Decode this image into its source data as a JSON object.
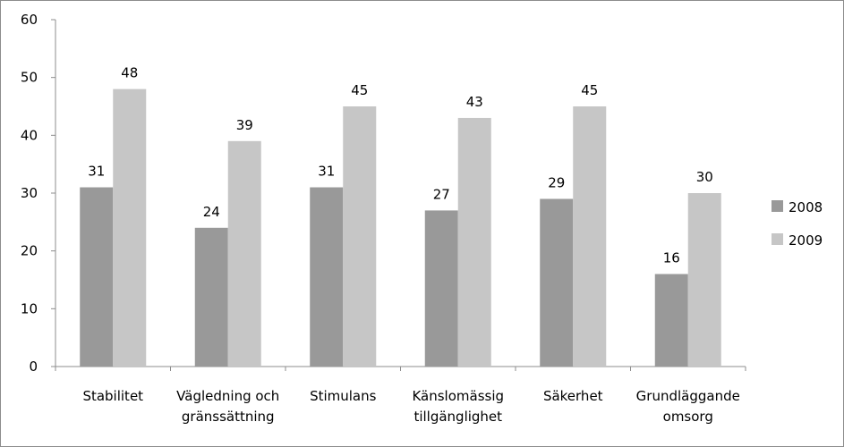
{
  "chart_data": {
    "type": "bar",
    "categories": [
      [
        "Stabilitet"
      ],
      [
        "Vägledning och",
        "gränssättning"
      ],
      [
        "Stimulans"
      ],
      [
        "Känslomässig",
        "tillgänglighet"
      ],
      [
        "Säkerhet"
      ],
      [
        "Grundläggande",
        "omsorg"
      ]
    ],
    "series": [
      {
        "name": "2008",
        "values": [
          31,
          24,
          31,
          27,
          29,
          16
        ],
        "color": "#999999"
      },
      {
        "name": "2009",
        "values": [
          48,
          39,
          45,
          43,
          45,
          30
        ],
        "color": "#c6c6c6"
      }
    ],
    "ylim": [
      0,
      60
    ],
    "yticks": [
      0,
      10,
      20,
      30,
      40,
      50,
      60
    ],
    "title": "",
    "xlabel": "",
    "ylabel": "",
    "grid": false,
    "legend_position": "right",
    "data_labels": true
  }
}
